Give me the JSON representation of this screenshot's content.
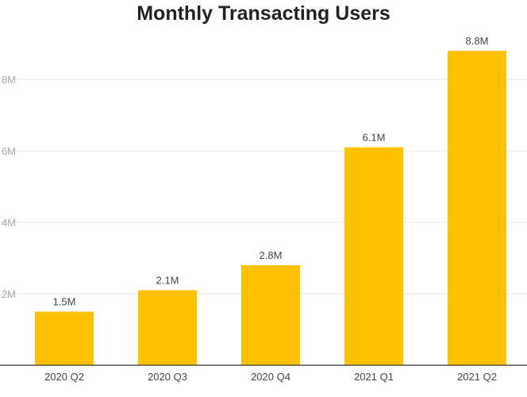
{
  "chart_data": {
    "type": "bar",
    "title": "Monthly Transacting Users",
    "categories": [
      "2020 Q2",
      "2020 Q3",
      "2020 Q4",
      "2021 Q1",
      "2021 Q2"
    ],
    "values": [
      1.5,
      2.1,
      2.8,
      6.1,
      8.8
    ],
    "data_labels": [
      "1.5M",
      "2.1M",
      "2.8M",
      "6.1M",
      "8.8M"
    ],
    "yticks": [
      2,
      4,
      6,
      8
    ],
    "ytick_labels": [
      "2M",
      "4M",
      "6M",
      "8M"
    ],
    "ylim": [
      0,
      9
    ],
    "xlabel": "",
    "ylabel": "",
    "grid": true,
    "bar_color": "#FFC200"
  }
}
